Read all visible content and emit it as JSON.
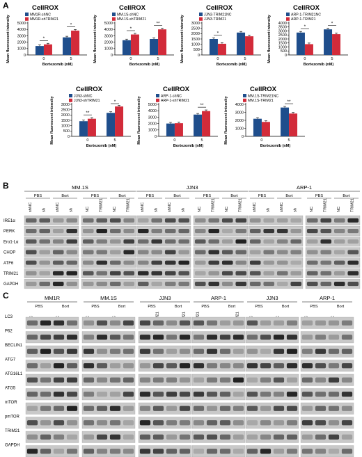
{
  "panels": {
    "a": "A",
    "b": "B",
    "c": "C"
  },
  "colors": {
    "blue": "#1F4E8C",
    "red": "#D22B3A"
  },
  "chart_data": [
    {
      "type": "bar",
      "title": "CellROX",
      "xlabel": "Bortezomib (nM)",
      "ylabel": "Mean fluorescent intensity",
      "categories": [
        "0",
        "5"
      ],
      "ylim": [
        0,
        5000
      ],
      "yticks": [
        0,
        1000,
        2000,
        3000,
        4000,
        5000
      ],
      "series": [
        {
          "name": "MM1R-shNC",
          "values": [
            1400,
            2750
          ]
        },
        {
          "name": "MM1R-shTRIM21",
          "values": [
            1650,
            3800
          ]
        }
      ],
      "significance": [
        "*",
        "*"
      ]
    },
    {
      "type": "bar",
      "title": "CellROX",
      "xlabel": "Bortezomib (nM)",
      "ylabel": "Mean fluorescent intensity",
      "categories": [
        "0",
        "5"
      ],
      "ylim": [
        0,
        5000
      ],
      "yticks": [
        0,
        1000,
        2000,
        3000,
        4000,
        5000
      ],
      "series": [
        {
          "name": "MM.1S-shNC",
          "values": [
            2300,
            2500
          ]
        },
        {
          "name": "MM.1S-shTRIM21",
          "values": [
            3200,
            4000
          ]
        }
      ],
      "significance": [
        "*",
        "**"
      ]
    },
    {
      "type": "bar",
      "title": "CellROX",
      "xlabel": "Bortezomib (nM)",
      "ylabel": "Mean fluorescent intensity",
      "categories": [
        "0",
        "5"
      ],
      "ylim": [
        0,
        3000
      ],
      "yticks": [
        0,
        500,
        1000,
        1500,
        2000,
        2500,
        3000
      ],
      "series": [
        {
          "name": "JJN3-TRIM21NC",
          "values": [
            1500,
            2100
          ]
        },
        {
          "name": "JJN3-TRIM21",
          "values": [
            1050,
            1750
          ]
        }
      ],
      "significance": [
        "*",
        ""
      ]
    },
    {
      "type": "bar",
      "title": "CellROX",
      "xlabel": "Bortezomib (nM)",
      "ylabel": "Mean fluorescent intensity",
      "categories": [
        "0",
        "5"
      ],
      "ylim": [
        0,
        4000
      ],
      "yticks": [
        0,
        500,
        1000,
        1500,
        2000,
        2500,
        3000,
        3500,
        4000
      ],
      "series": [
        {
          "name": "ARP-1-TRIM21NC",
          "values": [
            2800,
            3200
          ]
        },
        {
          "name": "ARP-1-TRIM21",
          "values": [
            1350,
            2600
          ]
        }
      ],
      "significance": [
        "*",
        "*"
      ]
    },
    {
      "type": "bar",
      "title": "CellROX",
      "xlabel": "Bortezomib (nM)",
      "ylabel": "Mean fluorescent intensity",
      "categories": [
        "0",
        "5"
      ],
      "ylim": [
        0,
        3000
      ],
      "yticks": [
        0,
        500,
        1000,
        1500,
        2000,
        2500,
        3000
      ],
      "series": [
        {
          "name": "JJN3-shNC",
          "values": [
            1420,
            2200
          ]
        },
        {
          "name": "JJN3-shTRIM21",
          "values": [
            1650,
            2800
          ]
        }
      ],
      "significance": [
        "**",
        "*"
      ]
    },
    {
      "type": "bar",
      "title": "CellROX",
      "xlabel": "Bortezomib (nM)",
      "ylabel": "Mean fluorescent intensity",
      "categories": [
        "0",
        "5"
      ],
      "ylim": [
        0,
        5000
      ],
      "yticks": [
        0,
        1000,
        2000,
        3000,
        4000,
        5000
      ],
      "series": [
        {
          "name": "ARP-1-shNC",
          "values": [
            2000,
            3400
          ]
        },
        {
          "name": "ARP-1-shTRIM21",
          "values": [
            2050,
            3950
          ]
        }
      ],
      "significance": [
        "",
        "**"
      ]
    },
    {
      "type": "bar",
      "title": "CellROX",
      "xlabel": "Bortezomib (nM)",
      "ylabel": "Mean fluorescent intensity",
      "categories": [
        "0",
        "5"
      ],
      "ylim": [
        0,
        4000
      ],
      "yticks": [
        0,
        1000,
        2000,
        3000,
        4000
      ],
      "series": [
        {
          "name": "MM.1S-TRIM21NC",
          "values": [
            2200,
            3600
          ]
        },
        {
          "name": "MM.1S-TRIM21",
          "values": [
            1800,
            2850
          ]
        }
      ],
      "significance": [
        "",
        "**"
      ]
    }
  ],
  "blot_b": {
    "rows": [
      "IRE1α",
      "PERK",
      "Ero1-Lα",
      "CHOP",
      "ATF6",
      "TRIM21",
      "GAPDH"
    ],
    "groups": [
      {
        "cell": "MM.1S",
        "panels": [
          {
            "tx": [
              "PBS",
              "Bort"
            ],
            "lanes": [
              "shNC",
              "sh",
              "shNC",
              "sh"
            ]
          },
          {
            "tx": [
              "PBS",
              "Bort"
            ],
            "lanes": [
              "NC",
              "TRIM21",
              "NC",
              "TRIM21"
            ]
          }
        ]
      },
      {
        "cell": "JJN3",
        "panels": [
          {
            "tx": [
              "PBS",
              "Bort"
            ],
            "lanes": [
              "shNC",
              "sh",
              "shNC",
              "sh"
            ]
          },
          {
            "tx": [
              "PBS",
              "Bort"
            ],
            "lanes": [
              "NC",
              "TRIM21",
              "NC",
              "TRIM21"
            ]
          }
        ]
      },
      {
        "cell": "ARP-1",
        "panels": [
          {
            "tx": [
              "PBS",
              "Bort"
            ],
            "lanes": [
              "shNC",
              "sh",
              "shNC",
              "sh"
            ]
          },
          {
            "tx": [
              "PBS",
              "Bort"
            ],
            "lanes": [
              "NC",
              "TRIM21",
              "NC",
              "TRIM21"
            ]
          }
        ]
      }
    ]
  },
  "blot_c": {
    "rows": [
      "LC3",
      "P62",
      "BECLIN1",
      "ATG7",
      "ATG16L1",
      "ATG5",
      "mTOR",
      "pmTOR",
      "TRIM21",
      "GAPDH"
    ],
    "groups": [
      {
        "cell": "MM1R",
        "tx": [
          "PBS",
          "Bort"
        ],
        "lanes": [
          "shNC",
          "sh",
          "shNC",
          "sh"
        ]
      },
      {
        "cell": "MM.1S",
        "tx": [
          "PBS",
          "Bort"
        ],
        "lanes": [
          "shNC",
          "sh",
          "shNC",
          "sh"
        ]
      },
      {
        "cell": "JJN3",
        "tx": [
          "PBS",
          "Bort"
        ],
        "lanes": [
          "NC",
          "TRIM21",
          "NC",
          "TRIM21"
        ]
      },
      {
        "cell": "ARP-1",
        "tx": [
          "PBS",
          "Bort"
        ],
        "lanes": [
          "TRIM21",
          "NC",
          "NC",
          "TRIM21"
        ]
      },
      {
        "cell": "JJN3",
        "tx": [
          "PBS",
          "Bort"
        ],
        "lanes": [
          "shNC",
          "sh",
          "shNC",
          "sh"
        ]
      },
      {
        "cell": "ARP-1",
        "tx": [
          "PBS",
          "Bort"
        ],
        "lanes": [
          "shNC",
          "sh",
          "shNC",
          "sh"
        ]
      }
    ]
  }
}
